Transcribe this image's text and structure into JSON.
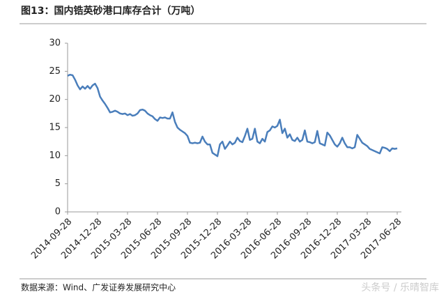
{
  "chart_data": {
    "type": "line",
    "title": "图13：国内锆英砂港口库存合计（万吨）",
    "source": "数据来源：Wind、广发证券发展研究中心",
    "watermark": "头条号 / 乐晴智库",
    "color": "#4a7ebb",
    "categories": [
      "2014-09-28",
      null,
      null,
      null,
      null,
      null,
      null,
      null,
      null,
      null,
      null,
      null,
      "2014-12-28",
      null,
      null,
      null,
      null,
      null,
      null,
      null,
      null,
      null,
      null,
      null,
      "2015-03-28",
      null,
      null,
      null,
      null,
      null,
      null,
      null,
      null,
      null,
      null,
      null,
      "2015-06-28",
      null,
      null,
      null,
      null,
      null,
      null,
      null,
      null,
      null,
      null,
      null,
      "2015-09-28",
      null,
      null,
      null,
      null,
      null,
      null,
      null,
      null,
      null,
      null,
      null,
      "2015-12-28",
      null,
      null,
      null,
      null,
      null,
      null,
      null,
      null,
      null,
      null,
      null,
      "2016-03-28",
      null,
      null,
      null,
      null,
      null,
      null,
      null,
      null,
      null,
      null,
      null,
      "2016-06-28",
      null,
      null,
      null,
      null,
      null,
      null,
      null,
      null,
      null,
      null,
      null,
      "2016-09-28",
      null,
      null,
      null,
      null,
      null,
      null,
      null,
      null,
      null,
      null,
      null,
      "2016-12-28",
      null,
      null,
      null,
      null,
      null,
      null,
      null,
      null,
      null,
      null,
      null,
      "2017-03-28",
      null,
      null,
      null,
      null,
      null,
      null,
      null,
      null,
      null,
      null,
      null,
      "2017-06-28"
    ],
    "values": [
      24.2,
      24.4,
      24.3,
      23.5,
      22.5,
      21.8,
      22.3,
      21.9,
      22.4,
      21.9,
      22.5,
      22.8,
      22.0,
      20.5,
      19.8,
      19.2,
      18.5,
      17.7,
      17.8,
      18.0,
      17.8,
      17.5,
      17.4,
      17.5,
      17.2,
      17.4,
      17.1,
      17.2,
      17.5,
      18.1,
      18.2,
      18.0,
      17.5,
      17.2,
      17.0,
      16.5,
      16.2,
      16.8,
      16.7,
      16.8,
      16.6,
      16.6,
      17.7,
      16.0,
      15.0,
      14.6,
      14.3,
      14.0,
      13.5,
      12.3,
      12.2,
      12.3,
      12.2,
      12.3,
      13.4,
      12.5,
      12.0,
      12.0,
      10.5,
      10.2,
      9.9,
      12.0,
      12.5,
      11.2,
      11.8,
      12.5,
      12.0,
      12.3,
      13.2,
      12.6,
      12.4,
      13.5,
      14.8,
      12.8,
      13.0,
      14.8,
      12.5,
      12.2,
      13.0,
      12.5,
      14.2,
      14.5,
      15.2,
      15.0,
      15.3,
      16.4,
      14.0,
      14.8,
      13.2,
      13.8,
      12.8,
      12.6,
      13.2,
      12.5,
      12.8,
      14.5,
      12.5,
      12.4,
      12.2,
      12.4,
      14.4,
      12.2,
      12.0,
      11.8,
      14.1,
      13.6,
      12.8,
      12.0,
      11.6,
      12.2,
      13.2,
      12.2,
      11.5,
      11.5,
      11.3,
      11.5,
      13.7,
      13.0,
      12.3,
      12.0,
      11.7,
      11.2,
      11.0,
      10.8,
      10.6,
      10.4,
      11.5,
      11.4,
      11.2,
      10.8,
      11.3,
      11.2,
      11.3
    ],
    "ylim": [
      0,
      30
    ],
    "yticks": [
      0,
      5,
      10,
      15,
      20,
      25,
      30
    ],
    "grid": false
  }
}
